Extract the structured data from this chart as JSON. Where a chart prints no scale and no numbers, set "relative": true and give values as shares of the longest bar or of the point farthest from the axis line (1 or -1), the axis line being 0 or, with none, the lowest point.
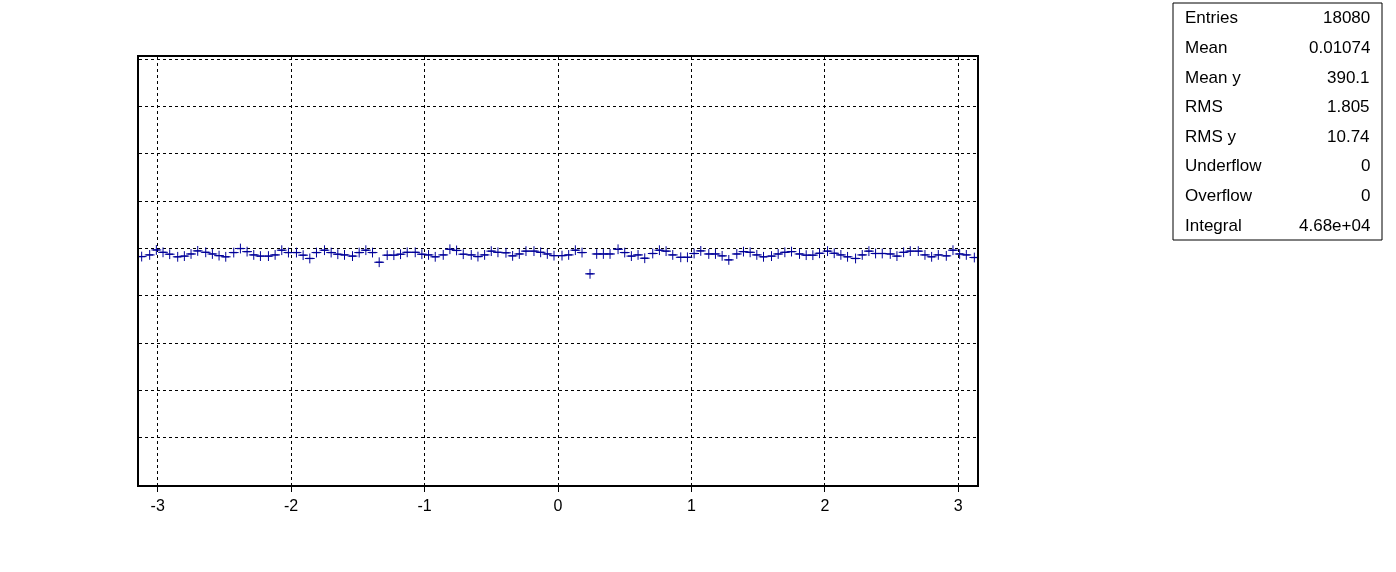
{
  "chart_data": {
    "type": "scatter",
    "relative": true,
    "marker": "cross",
    "grid": true,
    "tick_labels": "x",
    "xlim": [
      -3.14,
      3.14
    ],
    "xticks": [
      -3,
      -2,
      -1,
      0,
      1,
      2,
      3
    ],
    "annotations": [
      "Entries",
      "18080",
      "Mean",
      "0.01074",
      "Mean y",
      "390.1",
      "RMS",
      "1.805",
      "RMS y",
      "10.74",
      "Underflow",
      "0",
      "Overflow",
      "0",
      "Integral",
      "4.68e+04"
    ],
    "x": [
      -3.12,
      -3.06,
      -3.01,
      -2.96,
      -2.91,
      -2.85,
      -2.8,
      -2.75,
      -2.7,
      -2.64,
      -2.59,
      -2.54,
      -2.49,
      -2.43,
      -2.38,
      -2.33,
      -2.28,
      -2.23,
      -2.17,
      -2.12,
      -2.07,
      -2.02,
      -1.96,
      -1.91,
      -1.86,
      -1.81,
      -1.75,
      -1.7,
      -1.65,
      -1.6,
      -1.54,
      -1.49,
      -1.44,
      -1.39,
      -1.34,
      -1.28,
      -1.23,
      -1.18,
      -1.13,
      -1.07,
      -1.02,
      -0.97,
      -0.92,
      -0.86,
      -0.81,
      -0.76,
      -0.71,
      -0.65,
      -0.6,
      -0.55,
      -0.5,
      -0.45,
      -0.39,
      -0.34,
      -0.29,
      -0.24,
      -0.18,
      -0.13,
      -0.08,
      -0.03,
      0.03,
      0.08,
      0.13,
      0.18,
      0.24,
      0.29,
      0.34,
      0.39,
      0.45,
      0.5,
      0.55,
      0.6,
      0.65,
      0.71,
      0.76,
      0.81,
      0.86,
      0.92,
      0.97,
      1.02,
      1.07,
      1.13,
      1.18,
      1.23,
      1.28,
      1.34,
      1.39,
      1.44,
      1.49,
      1.54,
      1.6,
      1.65,
      1.7,
      1.75,
      1.81,
      1.86,
      1.91,
      1.96,
      2.02,
      2.07,
      2.12,
      2.17,
      2.23,
      2.28,
      2.33,
      2.38,
      2.43,
      2.49,
      2.54,
      2.59,
      2.64,
      2.7,
      2.75,
      2.8,
      2.85,
      2.91,
      2.96,
      3.01,
      3.06,
      3.12
    ],
    "series": [
      {
        "color": "#000099",
        "values": [
          0.966,
          0.973,
          0.994,
          0.984,
          0.976,
          0.965,
          0.968,
          0.977,
          0.99,
          0.984,
          0.977,
          0.97,
          0.965,
          0.983,
          1.0,
          0.987,
          0.973,
          0.968,
          0.968,
          0.973,
          0.993,
          0.983,
          0.983,
          0.972,
          0.958,
          0.983,
          0.993,
          0.983,
          0.976,
          0.973,
          0.968,
          0.983,
          0.993,
          0.983,
          0.942,
          0.972,
          0.972,
          0.976,
          0.984,
          0.984,
          0.976,
          0.973,
          0.965,
          0.973,
          0.997,
          0.992,
          0.976,
          0.973,
          0.966,
          0.973,
          0.989,
          0.984,
          0.982,
          0.969,
          0.977,
          0.989,
          0.989,
          0.984,
          0.977,
          0.97,
          0.97,
          0.973,
          0.993,
          0.983,
          0.893,
          0.977,
          0.977,
          0.977,
          0.997,
          0.983,
          0.968,
          0.973,
          0.959,
          0.979,
          0.993,
          0.989,
          0.973,
          0.963,
          0.963,
          0.979,
          0.99,
          0.977,
          0.977,
          0.969,
          0.952,
          0.977,
          0.987,
          0.984,
          0.973,
          0.965,
          0.968,
          0.977,
          0.984,
          0.987,
          0.977,
          0.972,
          0.972,
          0.98,
          0.989,
          0.98,
          0.973,
          0.965,
          0.958,
          0.973,
          0.989,
          0.979,
          0.979,
          0.977,
          0.968,
          0.984,
          0.989,
          0.989,
          0.973,
          0.965,
          0.973,
          0.969,
          0.993,
          0.977,
          0.973,
          0.962
        ],
        "xerrors": [
          0.026,
          0.026,
          0.026,
          0.026,
          0.026,
          0.026,
          0.026,
          0.026,
          0.026,
          0.026,
          0.026,
          0.026,
          0.026,
          0.026,
          0.026,
          0.026,
          0.026,
          0.026,
          0.026,
          0.026,
          0.026,
          0.026,
          0.026,
          0.026,
          0.026,
          0.026,
          0.026,
          0.026,
          0.026,
          0.026,
          0.026,
          0.026,
          0.026,
          0.026,
          0.026,
          0.026,
          0.026,
          0.026,
          0.026,
          0.026,
          0.026,
          0.026,
          0.026,
          0.026,
          0.026,
          0.026,
          0.026,
          0.026,
          0.026,
          0.026,
          0.026,
          0.026,
          0.026,
          0.026,
          0.026,
          0.026,
          0.026,
          0.026,
          0.026,
          0.026,
          0.026,
          0.026,
          0.026,
          0.026,
          0.026,
          0.026,
          0.026,
          0.026,
          0.026,
          0.026,
          0.026,
          0.026,
          0.026,
          0.026,
          0.026,
          0.026,
          0.026,
          0.026,
          0.026,
          0.026,
          0.026,
          0.026,
          0.026,
          0.026,
          0.026,
          0.026,
          0.026,
          0.026,
          0.026,
          0.026,
          0.026,
          0.026,
          0.026,
          0.026,
          0.026,
          0.026,
          0.026,
          0.026,
          0.026,
          0.026,
          0.026,
          0.026,
          0.026,
          0.026,
          0.026,
          0.026,
          0.026,
          0.026,
          0.026,
          0.026,
          0.026,
          0.026,
          0.026,
          0.026,
          0.026,
          0.026,
          0.026,
          0.026,
          0.026,
          0.026
        ]
      }
    ]
  }
}
